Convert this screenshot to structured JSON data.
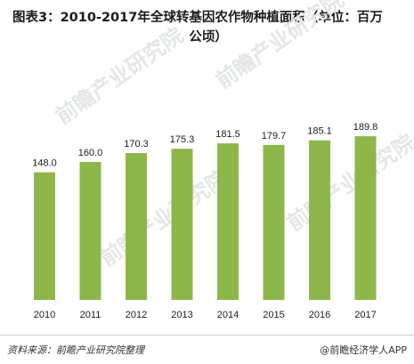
{
  "title_line1": "图表3：2010-2017年全球转基因农作物种植面积（单位：百万",
  "title_line2": "公顷）",
  "source": "资料来源：前瞻产业研究院整理",
  "brand": "@前瞻经济学人APP",
  "watermark": "前瞻产业研究院",
  "colors": {
    "bar": "#8db74a",
    "text": "#1c1c1c"
  },
  "chart_data": {
    "type": "bar",
    "title": "图表3：2010-2017年全球转基因农作物种植面积（单位：百万公顷）",
    "categories": [
      "2010",
      "2011",
      "2012",
      "2013",
      "2014",
      "2015",
      "2016",
      "2017"
    ],
    "values": [
      148.0,
      160.0,
      170.3,
      175.3,
      181.5,
      179.7,
      185.1,
      189.8
    ],
    "labels": [
      "148.0",
      "160.0",
      "170.3",
      "175.3",
      "181.5",
      "179.7",
      "185.1",
      "189.8"
    ],
    "xlabel": "",
    "ylabel": "",
    "grid": false,
    "legend": "none"
  }
}
